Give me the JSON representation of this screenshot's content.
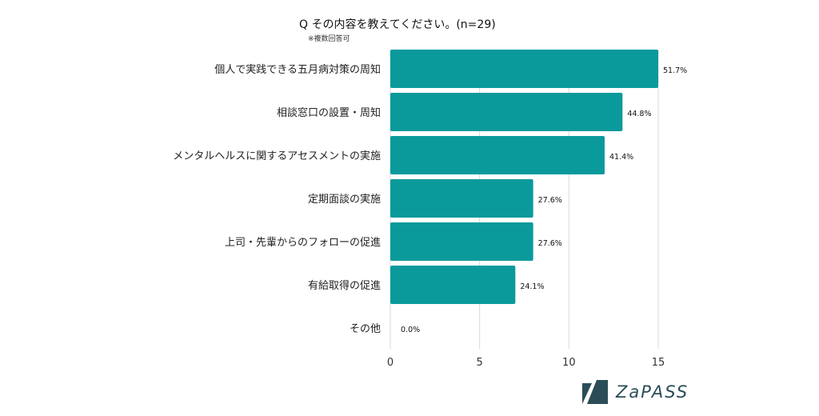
{
  "title": "Q その内容を教えてください。(n=29)",
  "subtitle": "※複数回答可",
  "logo": {
    "text": "ZaPASS",
    "icon": "zapass-logo-icon",
    "color": "#2a4d57"
  },
  "chart_data": {
    "type": "bar",
    "orientation": "horizontal",
    "title": "Q その内容を教えてください。(n=29)",
    "categories": [
      "個人で実践できる五月病対策の周知",
      "相談窓口の設置・周知",
      "メンタルヘルスに関するアセスメントの実施",
      "定期面談の実施",
      "上司・先輩からのフォローの促進",
      "有給取得の促進",
      "その他"
    ],
    "values": [
      15,
      13,
      12,
      8,
      8,
      7,
      0
    ],
    "data_labels": [
      "51.7%",
      "44.8%",
      "41.4%",
      "27.6%",
      "27.6%",
      "24.1%",
      "0.0%"
    ],
    "xlim": [
      0,
      15
    ],
    "xticks": [
      0,
      5,
      10,
      15
    ],
    "grid": true,
    "bar_color": "#0b9a9b"
  }
}
